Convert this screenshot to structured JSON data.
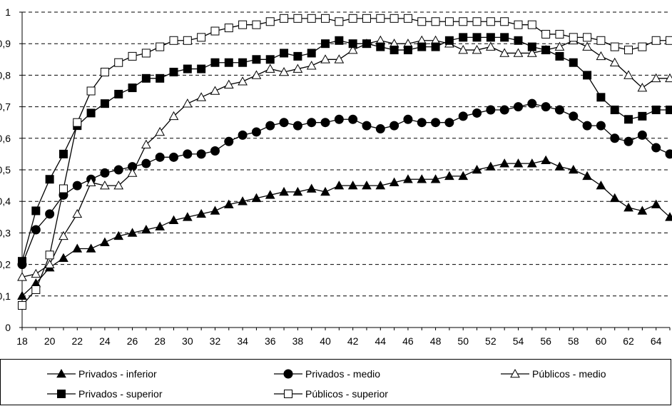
{
  "chart_data": {
    "type": "line",
    "title": "",
    "xlabel": "",
    "ylabel": "",
    "ylim": [
      0,
      1
    ],
    "y_ticks": [
      "0",
      "0,1",
      "0,2",
      "0,3",
      "0,4",
      "0,5",
      "0,6",
      "0,7",
      "0,8",
      "0,9",
      "1"
    ],
    "x": [
      18,
      19,
      20,
      21,
      22,
      23,
      24,
      25,
      26,
      27,
      28,
      29,
      30,
      31,
      32,
      33,
      34,
      35,
      36,
      37,
      38,
      39,
      40,
      41,
      42,
      43,
      44,
      45,
      46,
      47,
      48,
      49,
      50,
      51,
      52,
      53,
      54,
      55,
      56,
      57,
      58,
      59,
      60,
      61,
      62,
      63,
      64,
      65
    ],
    "x_ticks": [
      "18",
      "20",
      "22",
      "24",
      "26",
      "28",
      "30",
      "32",
      "34",
      "36",
      "38",
      "40",
      "42",
      "44",
      "46",
      "48",
      "50",
      "52",
      "54",
      "56",
      "58",
      "60",
      "62",
      "64"
    ],
    "grid": "horizontal dashed",
    "legend_position": "bottom",
    "series": [
      {
        "name": "Privados - inferior",
        "marker": "filled-triangle",
        "values": [
          0.1,
          0.14,
          0.19,
          0.22,
          0.25,
          0.25,
          0.27,
          0.29,
          0.3,
          0.31,
          0.32,
          0.34,
          0.35,
          0.36,
          0.37,
          0.39,
          0.4,
          0.41,
          0.42,
          0.43,
          0.43,
          0.44,
          0.43,
          0.45,
          0.45,
          0.45,
          0.45,
          0.46,
          0.47,
          0.47,
          0.47,
          0.48,
          0.48,
          0.5,
          0.51,
          0.52,
          0.52,
          0.52,
          0.53,
          0.51,
          0.5,
          0.48,
          0.45,
          0.41,
          0.38,
          0.37,
          0.39,
          0.35
        ]
      },
      {
        "name": "Privados - medio",
        "marker": "filled-circle",
        "values": [
          0.2,
          0.31,
          0.36,
          0.42,
          0.45,
          0.47,
          0.49,
          0.5,
          0.51,
          0.52,
          0.54,
          0.54,
          0.55,
          0.55,
          0.56,
          0.59,
          0.61,
          0.62,
          0.64,
          0.65,
          0.64,
          0.65,
          0.65,
          0.66,
          0.66,
          0.64,
          0.63,
          0.64,
          0.66,
          0.65,
          0.65,
          0.65,
          0.67,
          0.68,
          0.69,
          0.69,
          0.7,
          0.71,
          0.7,
          0.69,
          0.67,
          0.64,
          0.64,
          0.6,
          0.59,
          0.61,
          0.57,
          0.55
        ]
      },
      {
        "name": "Públicos - medio",
        "marker": "hollow-triangle",
        "values": [
          0.16,
          0.17,
          0.2,
          0.29,
          0.36,
          0.46,
          0.45,
          0.45,
          0.49,
          0.58,
          0.62,
          0.67,
          0.71,
          0.73,
          0.75,
          0.77,
          0.78,
          0.8,
          0.82,
          0.81,
          0.82,
          0.83,
          0.85,
          0.85,
          0.88,
          0.9,
          0.91,
          0.9,
          0.9,
          0.91,
          0.91,
          0.9,
          0.88,
          0.88,
          0.89,
          0.87,
          0.87,
          0.87,
          0.88,
          0.89,
          0.91,
          0.89,
          0.86,
          0.84,
          0.8,
          0.76,
          0.79,
          0.79
        ]
      },
      {
        "name": "Privados - superior",
        "marker": "filled-square",
        "values": [
          0.21,
          0.37,
          0.47,
          0.55,
          0.64,
          0.68,
          0.71,
          0.74,
          0.76,
          0.79,
          0.79,
          0.81,
          0.82,
          0.82,
          0.84,
          0.84,
          0.84,
          0.85,
          0.85,
          0.87,
          0.86,
          0.87,
          0.9,
          0.91,
          0.9,
          0.9,
          0.89,
          0.88,
          0.88,
          0.89,
          0.89,
          0.91,
          0.92,
          0.92,
          0.92,
          0.92,
          0.91,
          0.89,
          0.88,
          0.86,
          0.84,
          0.8,
          0.73,
          0.69,
          0.66,
          0.67,
          0.69,
          0.69
        ]
      },
      {
        "name": "Públicos - superior",
        "marker": "hollow-square",
        "values": [
          0.07,
          0.12,
          0.23,
          0.44,
          0.65,
          0.75,
          0.81,
          0.84,
          0.86,
          0.87,
          0.89,
          0.91,
          0.91,
          0.92,
          0.94,
          0.95,
          0.96,
          0.96,
          0.97,
          0.98,
          0.98,
          0.98,
          0.98,
          0.97,
          0.98,
          0.98,
          0.98,
          0.98,
          0.98,
          0.97,
          0.97,
          0.97,
          0.97,
          0.97,
          0.97,
          0.97,
          0.96,
          0.96,
          0.93,
          0.93,
          0.92,
          0.92,
          0.91,
          0.89,
          0.88,
          0.89,
          0.91,
          0.91
        ]
      }
    ]
  }
}
